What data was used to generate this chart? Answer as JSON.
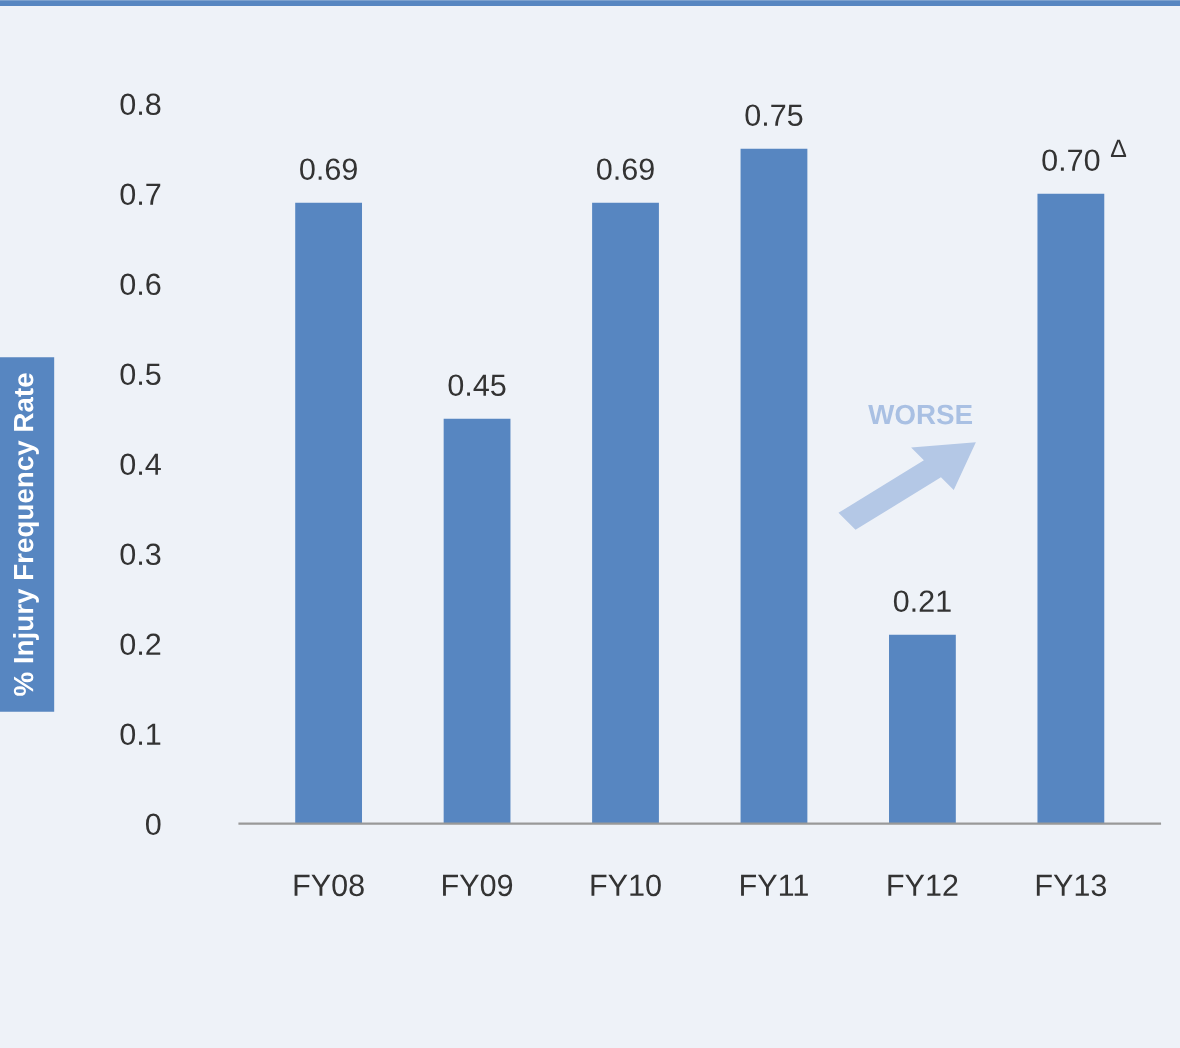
{
  "chart_data": {
    "type": "bar",
    "ylabel": "% Injury Frequency Rate",
    "categories": [
      "FY08",
      "FY09",
      "FY10",
      "FY11",
      "FY12",
      "FY13"
    ],
    "values": [
      0.69,
      0.45,
      0.69,
      0.75,
      0.21,
      0.7
    ],
    "value_labels": [
      "0.69",
      "0.45",
      "0.69",
      "0.75",
      "0.21",
      "0.70"
    ],
    "color": "#5786c1",
    "ylim": [
      0,
      0.8
    ],
    "yticks": [
      0,
      0.1,
      0.2,
      0.3,
      0.4,
      0.5,
      0.6,
      0.7,
      0.8
    ],
    "grid": false,
    "annotations": [
      "WORSE",
      "Δ"
    ]
  }
}
